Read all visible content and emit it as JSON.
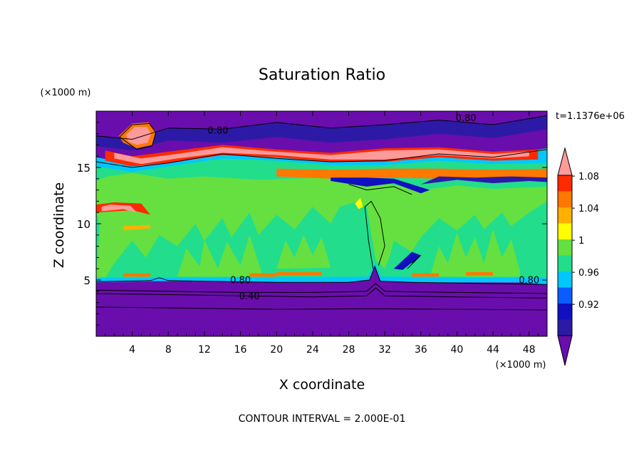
{
  "chart_data": {
    "type": "heatmap",
    "title": "Saturation Ratio",
    "xlabel": "X coordinate",
    "ylabel": "Z coordinate",
    "x_unit": "(×1000 m)",
    "y_unit": "(×1000 m)",
    "time_label": "t=1.1376e+06",
    "footer": "CONTOUR INTERVAL = 2.000E-01",
    "xlim": [
      0,
      50
    ],
    "ylim": [
      0,
      20
    ],
    "x_ticks": [
      4,
      8,
      12,
      16,
      20,
      24,
      28,
      32,
      36,
      40,
      44,
      48
    ],
    "y_ticks": [
      5,
      10,
      15
    ],
    "x_tick_labels": [
      "4",
      "8",
      "12",
      "16",
      "20",
      "24",
      "28",
      "32",
      "36",
      "40",
      "44",
      "48"
    ],
    "y_tick_labels": [
      "5",
      "10",
      "15"
    ],
    "colorbar": {
      "colors": [
        "#6a0dad",
        "#2c1aa6",
        "#1010c0",
        "#0b5cff",
        "#00c8ff",
        "#22dd8c",
        "#66e040",
        "#ffff00",
        "#ffb000",
        "#ff7800",
        "#ff2a00",
        "#ff9a9a"
      ],
      "labels": [
        "0.92",
        "0.96",
        "1",
        "1.04",
        "1.08"
      ],
      "label_bins": [
        2,
        4,
        6,
        8,
        10
      ]
    },
    "contour_labels": [
      {
        "text": "0.80",
        "x": 13.5,
        "z": 18.0
      },
      {
        "text": "0.80",
        "x": 41.0,
        "z": 19.1
      },
      {
        "text": "0.80",
        "x": 16.0,
        "z": 4.7
      },
      {
        "text": "0.40",
        "x": 17.0,
        "z": 3.3
      },
      {
        "text": "0.80",
        "x": 48.0,
        "z": 4.7
      }
    ]
  }
}
